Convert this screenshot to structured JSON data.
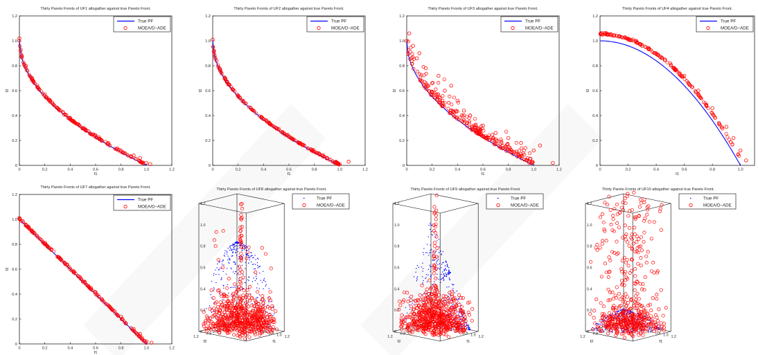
{
  "legend_true": "True PF",
  "legend_moea": "MOEA/D−ADE",
  "colors": {
    "true_pf": "#0000ff",
    "moea": "#ff0000",
    "axes": "#000000"
  },
  "chart_data": [
    {
      "type": "scatter",
      "title": "Thirty Pareto Fronts of UF1 altogather against true Pareto Front.",
      "xlabel": "f1",
      "ylabel": "f2",
      "xlim": [
        0,
        1.2
      ],
      "ylim": [
        0,
        1.2
      ],
      "xticks": [
        "0",
        "0.2",
        "0.4",
        "0.6",
        "0.8",
        "1.0",
        "1.2"
      ],
      "yticks": [
        "0",
        "0.2",
        "0.4",
        "0.6",
        "0.8",
        "1.0",
        "1.2"
      ],
      "legend": "top-right",
      "series": [
        {
          "name": "True PF",
          "mark": "line",
          "shape": "1-sqrt(x)",
          "x_range": [
            0,
            1
          ]
        },
        {
          "name": "MOEA/D−ADE",
          "mark": "circle",
          "x": [
            0.0,
            0.01,
            0.02,
            0.05,
            0.1,
            0.15,
            0.2,
            0.3,
            0.4,
            0.5,
            0.6,
            0.7,
            0.8,
            0.9,
            0.95,
            1.0,
            1.03
          ],
          "y": [
            1.02,
            0.93,
            0.88,
            0.8,
            0.7,
            0.62,
            0.57,
            0.46,
            0.38,
            0.3,
            0.24,
            0.18,
            0.12,
            0.08,
            0.06,
            0.02,
            0.01
          ]
        }
      ]
    },
    {
      "type": "scatter",
      "title": "Thirty Pareto Fronts of UF2 altogather against true Pareto Front.",
      "xlabel": "f1",
      "ylabel": "f2",
      "xlim": [
        0,
        1.2
      ],
      "ylim": [
        0,
        1.2
      ],
      "xticks": [
        "0",
        "0.2",
        "0.4",
        "0.6",
        "0.8",
        "1.0",
        "1.2"
      ],
      "yticks": [
        "0",
        "0.2",
        "0.4",
        "0.6",
        "0.8",
        "1.0",
        "1.2"
      ],
      "legend": "top-right",
      "series": [
        {
          "name": "True PF",
          "mark": "line",
          "shape": "1-sqrt(x)",
          "x_range": [
            0,
            1
          ]
        },
        {
          "name": "MOEA/D−ADE",
          "mark": "circle",
          "x": [
            0.0,
            0.01,
            0.03,
            0.06,
            0.1,
            0.2,
            0.3,
            0.4,
            0.5,
            0.6,
            0.7,
            0.8,
            0.9,
            1.0,
            1.07
          ],
          "y": [
            1.01,
            0.92,
            0.84,
            0.76,
            0.69,
            0.56,
            0.46,
            0.37,
            0.3,
            0.23,
            0.17,
            0.11,
            0.06,
            0.01,
            0.03
          ]
        }
      ]
    },
    {
      "type": "scatter",
      "title": "Thirty Pareto Fronts of UF3 altogather against true Pareto Front.",
      "xlabel": "f1",
      "ylabel": "f2",
      "xlim": [
        0,
        1.2
      ],
      "ylim": [
        0,
        1.2
      ],
      "xticks": [
        "0",
        "0.2",
        "0.4",
        "0.6",
        "0.8",
        "1.0",
        "1.2"
      ],
      "yticks": [
        "0",
        "0.2",
        "0.4",
        "0.6",
        "0.8",
        "1.0",
        "1.2"
      ],
      "legend": "top-right",
      "series": [
        {
          "name": "True PF",
          "mark": "line",
          "shape": "1-sqrt(x)",
          "x_range": [
            0,
            1
          ]
        },
        {
          "name": "MOEA/D−ADE",
          "mark": "circle",
          "x": [
            0.0,
            0.02,
            0.05,
            0.08,
            0.1,
            0.15,
            0.2,
            0.25,
            0.3,
            0.35,
            0.4,
            0.45,
            0.5,
            0.6,
            0.7,
            0.8,
            0.9,
            1.0,
            1.05,
            1.15
          ],
          "y": [
            1.0,
            1.06,
            0.96,
            0.86,
            0.9,
            0.78,
            0.66,
            0.72,
            0.6,
            0.64,
            0.52,
            0.44,
            0.4,
            0.32,
            0.26,
            0.22,
            0.18,
            0.12,
            0.16,
            0.02
          ]
        }
      ]
    },
    {
      "type": "scatter",
      "title": "Thirty Pareto Fronts of UF4 altogather against true Pareto Front.",
      "xlabel": "f1",
      "ylabel": "f2",
      "xlim": [
        0,
        1.1
      ],
      "ylim": [
        0,
        1.2
      ],
      "xticks": [
        "0",
        "0.2",
        "0.4",
        "0.6",
        "0.8",
        "1.0",
        "1."
      ],
      "yticks": [
        "0",
        "0.2",
        "0.4",
        "0.6",
        "0.8",
        "1.0",
        "1.2"
      ],
      "legend": "top-right",
      "series": [
        {
          "name": "True PF",
          "mark": "line",
          "shape": "1-x^2",
          "x_range": [
            0,
            1
          ]
        },
        {
          "name": "MOEA/D−ADE",
          "mark": "circle",
          "x": [
            0.02,
            0.1,
            0.2,
            0.3,
            0.4,
            0.5,
            0.6,
            0.7,
            0.8,
            0.9,
            0.95,
            1.0,
            1.04
          ],
          "y": [
            1.05,
            1.04,
            1.01,
            0.96,
            0.9,
            0.82,
            0.72,
            0.6,
            0.46,
            0.31,
            0.22,
            0.12,
            0.04
          ]
        }
      ]
    },
    {
      "type": "scatter",
      "title": "Thirty Pareto Fronts of UF7 altogather against true Pareto Front.",
      "xlabel": "f1",
      "ylabel": "f2",
      "xlim": [
        0,
        1.2
      ],
      "ylim": [
        0,
        1.2
      ],
      "xticks": [
        "0",
        "0.2",
        "0.4",
        "0.6",
        "0.8",
        "1.0",
        "1.2"
      ],
      "yticks": [
        "0",
        "0.2",
        "0.4",
        "0.6",
        "0.8",
        "1.0",
        "1.2"
      ],
      "legend": "top-right",
      "series": [
        {
          "name": "True PF",
          "mark": "line",
          "shape": "1-x",
          "x_range": [
            0,
            1
          ]
        },
        {
          "name": "MOEA/D−ADE",
          "mark": "circle",
          "x": [
            0.0,
            0.05,
            0.1,
            0.2,
            0.3,
            0.4,
            0.5,
            0.6,
            0.7,
            0.8,
            0.9,
            0.95,
            1.0,
            1.04
          ],
          "y": [
            1.01,
            0.95,
            0.9,
            0.8,
            0.7,
            0.6,
            0.5,
            0.4,
            0.31,
            0.22,
            0.12,
            0.08,
            0.02,
            0.01
          ]
        }
      ]
    },
    {
      "type": "scatter3d",
      "title": "Thirty Pareto Fronts of UF8 altogather against true Pareto Front.",
      "xlabel": "f1",
      "ylabel": "f2",
      "zlabel": "",
      "zticks": [
        "0",
        "0.2",
        "0.4",
        "0.6",
        "0.8",
        "1.0",
        "1.2"
      ],
      "f1ticks": [
        "0",
        "0.2",
        "0.4",
        "0.6",
        "0.8",
        "1.0",
        "1.2"
      ],
      "f2ticks": [
        "1.2",
        "0.8",
        "0.6",
        "0.4",
        "0.2",
        "0"
      ],
      "legend": "top-right",
      "series": [
        {
          "name": "True PF",
          "mark": "point",
          "shape": "sphere"
        },
        {
          "name": "MOEA/D−ADE",
          "mark": "circle",
          "spread": "broad cloud around the sphere surface"
        }
      ]
    },
    {
      "type": "scatter3d",
      "title": "Thirty Pareto Fronts of UF9 altogather against true Pareto Front.",
      "xlabel": "f1",
      "ylabel": "f2",
      "zlabel": "",
      "zticks": [
        "0",
        "0.2",
        "0.4",
        "0.6",
        "0.8",
        "1.0",
        "1.2"
      ],
      "f1ticks": [
        "0",
        "0.2",
        "0.4",
        "0.6",
        "0.8",
        "1.0",
        "1.2"
      ],
      "f2ticks": [
        "1.2",
        "0.8",
        "0.6",
        "0.4",
        "0.2",
        "0"
      ],
      "legend": "top-right",
      "series": [
        {
          "name": "True PF",
          "mark": "point",
          "shape": "two triangular planes"
        },
        {
          "name": "MOEA/D−ADE",
          "mark": "circle",
          "spread": "cloud with a central spike"
        }
      ]
    },
    {
      "type": "scatter3d",
      "title": "Thirty Pareto Fronts of UF10 altogather against true Pareto Front.",
      "xlabel": "f1",
      "ylabel": "f2",
      "zlabel": "",
      "zticks": [
        "0",
        "0.2",
        "0.4",
        "0.6",
        "0.8",
        "1.0",
        "1.2"
      ],
      "f1ticks": [
        "0",
        "0.2",
        "0.4",
        "0.6",
        "0.8",
        "1.0",
        "1.2"
      ],
      "f2ticks": [
        "1.2",
        "0.8",
        "0.6",
        "0.4",
        "0.2",
        "0"
      ],
      "legend": "top-right",
      "series": [
        {
          "name": "True PF",
          "mark": "point",
          "shape": "sphere"
        },
        {
          "name": "MOEA/D−ADE",
          "mark": "circle",
          "spread": "scattered cloud across full height"
        }
      ]
    }
  ]
}
